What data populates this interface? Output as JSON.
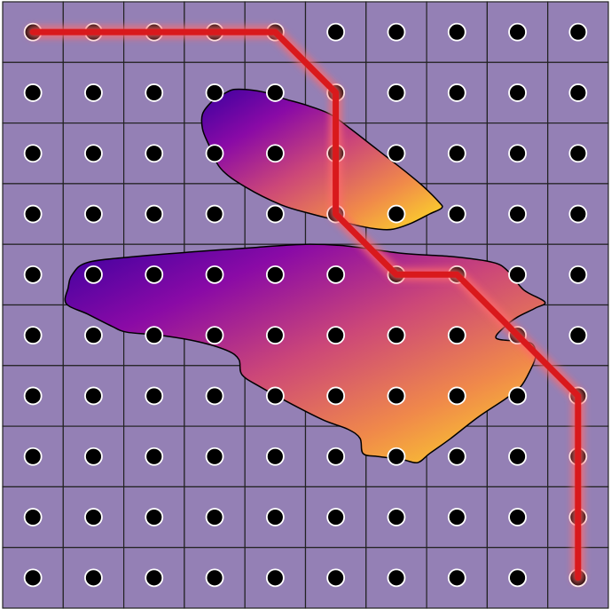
{
  "board": {
    "rows": 10,
    "cols": 10,
    "cell_color": "#9480b5",
    "grid_line_color": "#222222",
    "node_color": "#000000",
    "node_outline_color": "#ffffff"
  },
  "obstacles": [
    {
      "name": "obstacle-upper",
      "gradient": [
        "#3a00a0",
        "#8a0aa6",
        "#cc4778",
        "#f0894a",
        "#fde125"
      ],
      "points": [
        [
          3.6,
          1.55
        ],
        [
          3.8,
          1.45
        ],
        [
          4.05,
          1.45
        ],
        [
          4.35,
          1.5
        ],
        [
          4.65,
          1.6
        ],
        [
          5.0,
          1.7
        ],
        [
          5.4,
          1.85
        ],
        [
          5.75,
          2.1
        ],
        [
          6.2,
          2.45
        ],
        [
          6.65,
          2.8
        ],
        [
          6.95,
          3.05
        ],
        [
          7.2,
          3.3
        ],
        [
          7.25,
          3.4
        ],
        [
          7.05,
          3.5
        ],
        [
          6.75,
          3.65
        ],
        [
          6.45,
          3.75
        ],
        [
          6.2,
          3.75
        ],
        [
          5.9,
          3.7
        ],
        [
          5.5,
          3.6
        ],
        [
          5.1,
          3.5
        ],
        [
          4.6,
          3.35
        ],
        [
          4.0,
          3.05
        ],
        [
          3.6,
          2.75
        ],
        [
          3.4,
          2.35
        ],
        [
          3.3,
          2.1
        ],
        [
          3.3,
          1.85
        ],
        [
          3.45,
          1.65
        ]
      ]
    },
    {
      "name": "obstacle-lower",
      "gradient": [
        "#3a00a0",
        "#8a0aa6",
        "#cc4778",
        "#f0894a",
        "#fde125"
      ],
      "points": [
        [
          1.15,
          4.5
        ],
        [
          1.4,
          4.3
        ],
        [
          2.2,
          4.2
        ],
        [
          3.2,
          4.12
        ],
        [
          4.2,
          4.05
        ],
        [
          5.0,
          4.0
        ],
        [
          5.7,
          4.03
        ],
        [
          6.6,
          4.15
        ],
        [
          7.4,
          4.2
        ],
        [
          8.1,
          4.3
        ],
        [
          8.35,
          4.45
        ],
        [
          8.6,
          4.75
        ],
        [
          8.95,
          4.95
        ],
        [
          8.8,
          5.05
        ],
        [
          8.5,
          5.2
        ],
        [
          8.3,
          5.35
        ],
        [
          8.15,
          5.55
        ],
        [
          8.55,
          5.6
        ],
        [
          8.75,
          5.65
        ],
        [
          8.8,
          5.85
        ],
        [
          8.7,
          6.1
        ],
        [
          8.55,
          6.35
        ],
        [
          8.3,
          6.55
        ],
        [
          7.85,
          6.85
        ],
        [
          7.4,
          7.2
        ],
        [
          7.05,
          7.45
        ],
        [
          6.85,
          7.6
        ],
        [
          6.6,
          7.55
        ],
        [
          6.2,
          7.5
        ],
        [
          5.95,
          7.45
        ],
        [
          5.9,
          7.2
        ],
        [
          5.7,
          7.05
        ],
        [
          5.3,
          6.9
        ],
        [
          4.8,
          6.65
        ],
        [
          4.25,
          6.35
        ],
        [
          3.95,
          6.15
        ],
        [
          3.9,
          5.9
        ],
        [
          3.7,
          5.75
        ],
        [
          3.2,
          5.6
        ],
        [
          2.6,
          5.5
        ],
        [
          2.05,
          5.45
        ],
        [
          1.8,
          5.35
        ],
        [
          1.4,
          5.15
        ],
        [
          1.05,
          4.98
        ],
        [
          1.08,
          4.72
        ]
      ]
    }
  ],
  "path": {
    "color": "#d9191c",
    "glow_color": "#ff6b6b",
    "points": [
      [
        0,
        0
      ],
      [
        4,
        0
      ],
      [
        5,
        1
      ],
      [
        5,
        3
      ],
      [
        6,
        4
      ],
      [
        7,
        4
      ],
      [
        9,
        6
      ],
      [
        9,
        9
      ]
    ]
  }
}
